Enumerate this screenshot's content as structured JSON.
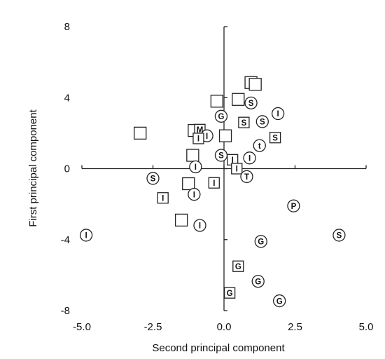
{
  "chart_data": {
    "type": "scatter",
    "title": "",
    "xlabel": "Second principal component",
    "ylabel": "First principal component",
    "xlim": [
      -5.0,
      5.0
    ],
    "ylim": [
      -8,
      8
    ],
    "x_ticks": [
      -5.0,
      -2.5,
      0.0,
      2.5,
      5.0
    ],
    "x_tick_labels": [
      "-5.0",
      "-2.5",
      "0.0",
      "2.5",
      "5.0"
    ],
    "y_ticks": [
      -8,
      -4,
      0,
      4,
      8
    ],
    "y_tick_labels": [
      "-8",
      "-4",
      "0",
      "4",
      "8"
    ],
    "grid": false,
    "axes_through_origin": true,
    "points": [
      {
        "x": 0.95,
        "y": 4.85,
        "shape": "square",
        "label": ""
      },
      {
        "x": 1.1,
        "y": 4.75,
        "shape": "square",
        "label": ""
      },
      {
        "x": -0.25,
        "y": 3.8,
        "shape": "square",
        "label": ""
      },
      {
        "x": 0.5,
        "y": 3.9,
        "shape": "square",
        "label": ""
      },
      {
        "x": 0.95,
        "y": 3.7,
        "shape": "circle",
        "label": "S"
      },
      {
        "x": -0.1,
        "y": 2.95,
        "shape": "circle",
        "label": "G"
      },
      {
        "x": 1.9,
        "y": 3.1,
        "shape": "circle",
        "label": "I"
      },
      {
        "x": 0.7,
        "y": 2.6,
        "shape": "square",
        "label": "S"
      },
      {
        "x": 1.35,
        "y": 2.65,
        "shape": "circle",
        "label": "S"
      },
      {
        "x": -2.95,
        "y": 2.0,
        "shape": "square",
        "label": ""
      },
      {
        "x": -1.05,
        "y": 2.15,
        "shape": "square",
        "label": ""
      },
      {
        "x": -0.85,
        "y": 2.2,
        "shape": "square",
        "label": "M"
      },
      {
        "x": -0.6,
        "y": 1.85,
        "shape": "circle",
        "label": "I"
      },
      {
        "x": -0.9,
        "y": 1.7,
        "shape": "square",
        "label": "I"
      },
      {
        "x": 0.05,
        "y": 1.85,
        "shape": "square",
        "label": ""
      },
      {
        "x": 1.8,
        "y": 1.75,
        "shape": "square",
        "label": "S"
      },
      {
        "x": 1.25,
        "y": 1.3,
        "shape": "circle",
        "label": "t"
      },
      {
        "x": -1.1,
        "y": 0.75,
        "shape": "square",
        "label": ""
      },
      {
        "x": -0.1,
        "y": 0.75,
        "shape": "circle",
        "label": "S"
      },
      {
        "x": 0.3,
        "y": 0.5,
        "shape": "square",
        "label": "I"
      },
      {
        "x": 0.9,
        "y": 0.6,
        "shape": "circle",
        "label": "I"
      },
      {
        "x": -1.0,
        "y": 0.1,
        "shape": "circle",
        "label": "I"
      },
      {
        "x": 0.45,
        "y": 0.0,
        "shape": "square",
        "label": "I"
      },
      {
        "x": 0.8,
        "y": -0.45,
        "shape": "circle",
        "label": "T"
      },
      {
        "x": -2.5,
        "y": -0.55,
        "shape": "circle",
        "label": "S"
      },
      {
        "x": -1.25,
        "y": -0.85,
        "shape": "square",
        "label": ""
      },
      {
        "x": -0.35,
        "y": -0.8,
        "shape": "square",
        "label": "I"
      },
      {
        "x": -1.05,
        "y": -1.45,
        "shape": "circle",
        "label": "I"
      },
      {
        "x": -2.15,
        "y": -1.65,
        "shape": "square",
        "label": "I"
      },
      {
        "x": 2.45,
        "y": -2.1,
        "shape": "circle",
        "label": "P"
      },
      {
        "x": -1.5,
        "y": -2.9,
        "shape": "square",
        "label": ""
      },
      {
        "x": -0.85,
        "y": -3.2,
        "shape": "circle",
        "label": "I"
      },
      {
        "x": -4.85,
        "y": -3.75,
        "shape": "circle",
        "label": "I"
      },
      {
        "x": 4.05,
        "y": -3.75,
        "shape": "circle",
        "label": "S"
      },
      {
        "x": 1.3,
        "y": -4.1,
        "shape": "circle",
        "label": "G"
      },
      {
        "x": 0.5,
        "y": -5.5,
        "shape": "square",
        "label": "G"
      },
      {
        "x": 1.2,
        "y": -6.35,
        "shape": "circle",
        "label": "G"
      },
      {
        "x": 0.2,
        "y": -7.0,
        "shape": "square",
        "label": "G"
      },
      {
        "x": 1.95,
        "y": -7.45,
        "shape": "circle",
        "label": "G"
      }
    ]
  }
}
